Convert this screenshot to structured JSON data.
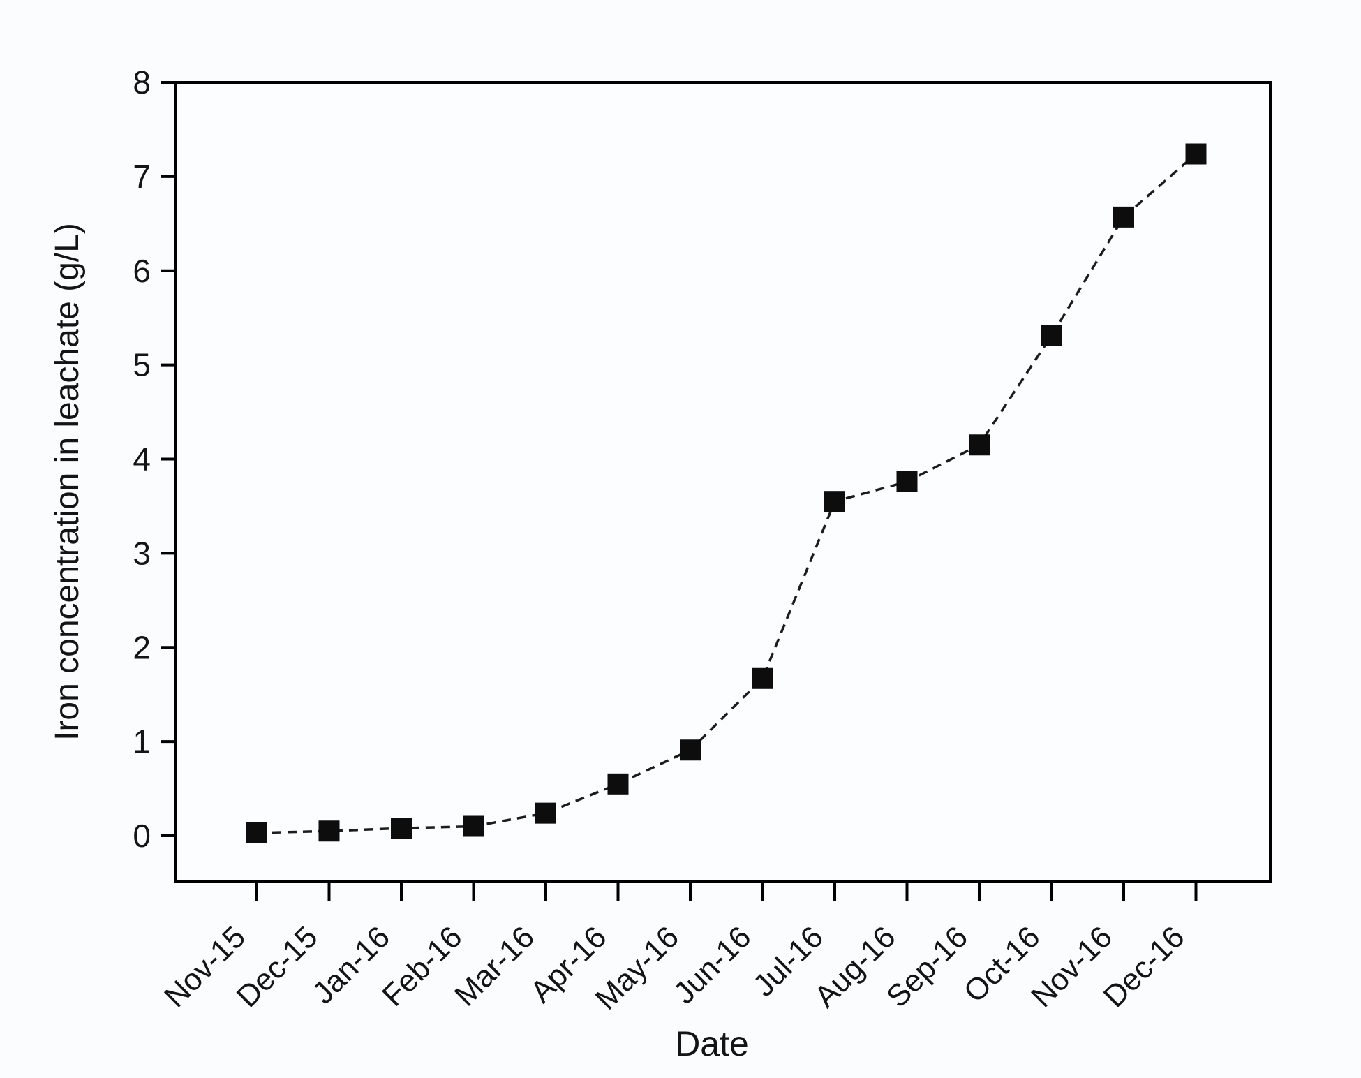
{
  "figure": {
    "kind": "scientific-plot",
    "background": "#fbfcfd"
  },
  "chart_data": {
    "type": "line",
    "title": "",
    "xlabel": "Date",
    "ylabel": "Iron concentration in leachate (g/L)",
    "categories": [
      "Nov-15",
      "Dec-15",
      "Jan-16",
      "Feb-16",
      "Mar-16",
      "Apr-16",
      "May-16",
      "Jun-16",
      "Jul-16",
      "Aug-16",
      "Sep-16",
      "Oct-16",
      "Nov-16",
      "Dec-16"
    ],
    "values": [
      0.03,
      0.05,
      0.08,
      0.1,
      0.24,
      0.55,
      0.91,
      1.67,
      3.55,
      3.76,
      4.15,
      5.31,
      6.57,
      7.24
    ],
    "yticks": [
      0,
      1,
      2,
      3,
      4,
      5,
      6,
      7,
      8
    ],
    "ylim": [
      -0.5,
      8
    ],
    "x_tick_rotation_deg": -45,
    "legend": "none",
    "grid": "off",
    "marker": "filled-square",
    "line_style": "dashed",
    "colors": {
      "line": "#1c1c1c",
      "marker": "#0d0d0d",
      "axis": "#000000",
      "tick_label": "#141414",
      "plot_background": "#fcfdfe"
    }
  }
}
